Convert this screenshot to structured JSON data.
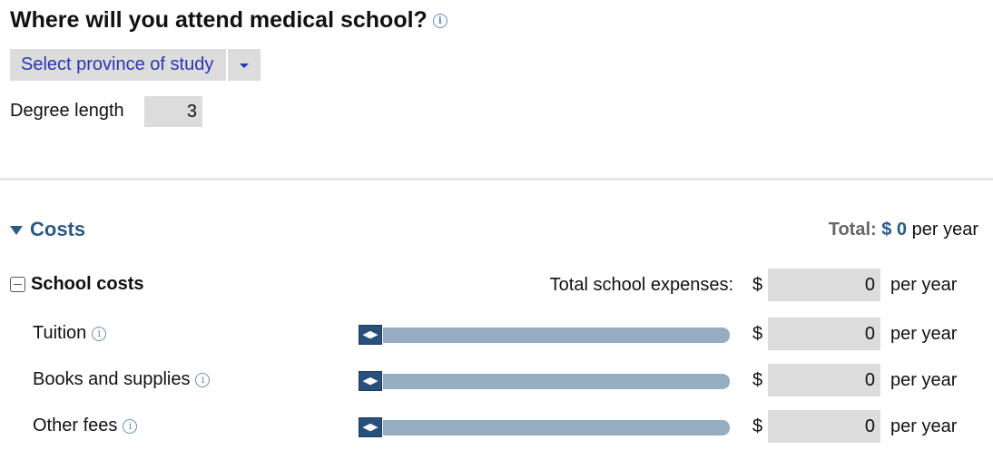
{
  "header": {
    "title": "Where will you attend medical school?"
  },
  "province_select": {
    "value": "Select province of study"
  },
  "degree": {
    "label": "Degree length",
    "value": "3"
  },
  "costs": {
    "title": "Costs",
    "total_label": "Total:",
    "total_value": "$ 0",
    "total_unit": "per year"
  },
  "school_costs": {
    "title": "School costs",
    "total_label": "Total school expenses:",
    "currency": "$",
    "value": "0",
    "unit": "per year"
  },
  "items": [
    {
      "label": "Tuition",
      "currency": "$",
      "value": "0",
      "unit": "per year",
      "slider": 0
    },
    {
      "label": "Books and supplies",
      "currency": "$",
      "value": "0",
      "unit": "per year",
      "slider": 0
    },
    {
      "label": "Other fees",
      "currency": "$",
      "value": "0",
      "unit": "per year",
      "slider": 0
    }
  ],
  "colors": {
    "accent": "#2c5a85",
    "slider_track": "#95acc1",
    "link": "#2b35b0"
  }
}
